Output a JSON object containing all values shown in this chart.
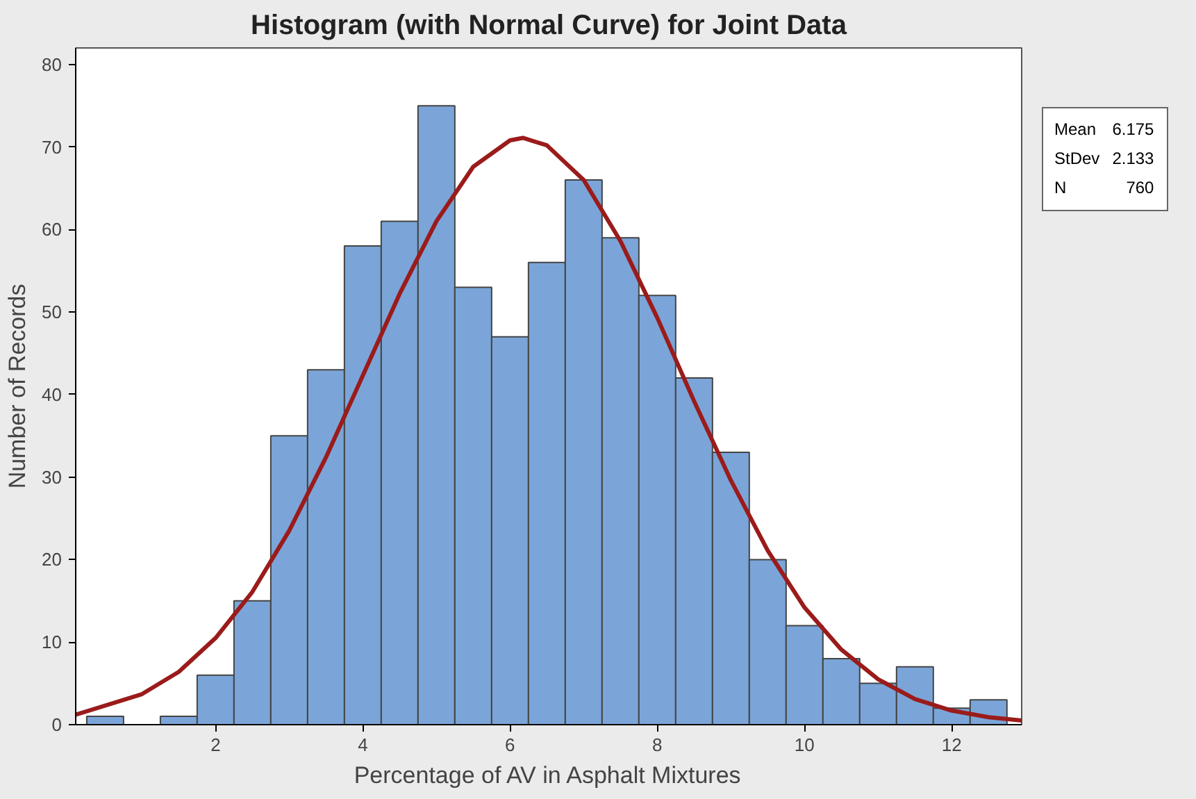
{
  "chart_data": {
    "type": "histogram",
    "title": "Histogram (with Normal Curve) for Joint Data",
    "xlabel": "Percentage of AV in Asphalt Mixtures",
    "ylabel": "Number of Records",
    "bins": [
      0.25,
      0.75,
      1.25,
      1.75,
      2.25,
      2.75,
      3.25,
      3.75,
      4.25,
      4.75,
      5.25,
      5.75,
      6.25,
      6.75,
      7.25,
      7.75,
      8.25,
      8.75,
      9.25,
      9.75,
      10.25,
      10.75,
      11.25,
      11.75,
      12.25,
      12.75
    ],
    "values": [
      1,
      0,
      1,
      6,
      15,
      35,
      43,
      58,
      61,
      75,
      53,
      47,
      56,
      66,
      59,
      52,
      42,
      33,
      20,
      12,
      8,
      5,
      7,
      2,
      3
    ],
    "color": "#7ba5d8",
    "series": [
      {
        "type": "line",
        "color": "#9b1b1b",
        "x": [
          0.1,
          1,
          1.5,
          2,
          2.5,
          3,
          3.5,
          4,
          4.5,
          5,
          5.5,
          6,
          6.175,
          6.5,
          7,
          7.5,
          8,
          8.5,
          9,
          9.5,
          10,
          10.5,
          11,
          11.5,
          12,
          12.5,
          12.95
        ],
        "values": [
          1.2,
          3.7,
          6.4,
          10.5,
          16.1,
          23.5,
          32.4,
          42.3,
          52.2,
          61.0,
          67.6,
          70.8,
          71.1,
          70.2,
          66.0,
          58.6,
          49.3,
          39.2,
          29.6,
          21.1,
          14.2,
          9.1,
          5.5,
          3.1,
          1.7,
          0.9,
          0.5
        ]
      }
    ],
    "xlim": [
      0.1,
      12.95
    ],
    "ylim": [
      0,
      82
    ],
    "xticks": [
      2,
      4,
      6,
      8,
      10,
      12
    ],
    "yticks": [
      0,
      10,
      20,
      30,
      40,
      50,
      60,
      70,
      80
    ],
    "annotations": [
      "Mean 6.175",
      "StDev 2.133",
      "N 760"
    ],
    "grid": false
  }
}
